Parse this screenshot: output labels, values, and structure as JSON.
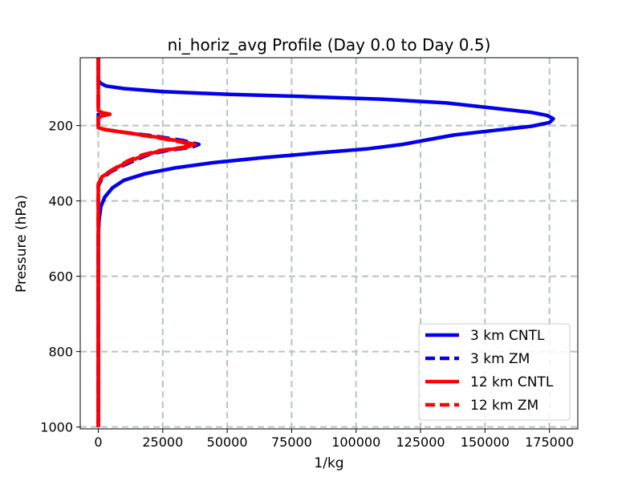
{
  "chart_data": {
    "type": "line",
    "title": "ni_horiz_avg Profile (Day 0.0 to Day 0.5)",
    "xlabel": "1/kg",
    "ylabel": "Pressure (hPa)",
    "xlim": [
      -7000,
      186000
    ],
    "ylim": [
      1005,
      20
    ],
    "y_inverted": true,
    "grid": true,
    "xticks": [
      0,
      25000,
      50000,
      75000,
      100000,
      125000,
      150000,
      175000
    ],
    "xtick_labels": [
      "0",
      "25000",
      "50000",
      "75000",
      "100000",
      "125000",
      "150000",
      "175000"
    ],
    "yticks": [
      200,
      400,
      600,
      800,
      1000
    ],
    "ytick_labels": [
      "200",
      "400",
      "600",
      "800",
      "1000"
    ],
    "legend_position": "lower-right",
    "series": [
      {
        "name": "3 km CNTL",
        "color": "#0000ee",
        "style": "solid",
        "points": [
          [
            0,
            20
          ],
          [
            0,
            80
          ],
          [
            1000,
            88
          ],
          [
            3000,
            95
          ],
          [
            10000,
            102
          ],
          [
            25000,
            110
          ],
          [
            50000,
            117
          ],
          [
            80000,
            123
          ],
          [
            110000,
            130
          ],
          [
            135000,
            140
          ],
          [
            155000,
            155
          ],
          [
            168000,
            165
          ],
          [
            174000,
            173
          ],
          [
            176500,
            182
          ],
          [
            175000,
            192
          ],
          [
            168000,
            202
          ],
          [
            155000,
            212
          ],
          [
            138000,
            225
          ],
          [
            126000,
            240
          ],
          [
            118000,
            250
          ],
          [
            104000,
            262
          ],
          [
            86000,
            272
          ],
          [
            64000,
            285
          ],
          [
            45000,
            298
          ],
          [
            30000,
            312
          ],
          [
            18000,
            328
          ],
          [
            10000,
            345
          ],
          [
            5500,
            365
          ],
          [
            2500,
            390
          ],
          [
            1000,
            415
          ],
          [
            300,
            450
          ],
          [
            0,
            490
          ],
          [
            0,
            1000
          ]
        ]
      },
      {
        "name": "3 km ZM",
        "color": "#0000ee",
        "style": "dashed",
        "points": [
          [
            0,
            20
          ],
          [
            0,
            205
          ],
          [
            2000,
            210
          ],
          [
            10000,
            218
          ],
          [
            22000,
            228
          ],
          [
            33000,
            240
          ],
          [
            39000,
            250
          ],
          [
            36000,
            258
          ],
          [
            27000,
            266
          ],
          [
            20000,
            276
          ],
          [
            15000,
            290
          ],
          [
            10000,
            305
          ],
          [
            5000,
            322
          ],
          [
            1500,
            340
          ],
          [
            0,
            360
          ],
          [
            0,
            1000
          ]
        ]
      },
      {
        "name": "12 km CNTL",
        "color": "#ff0000",
        "style": "solid",
        "points": [
          [
            0,
            20
          ],
          [
            0,
            160
          ],
          [
            1500,
            166
          ],
          [
            4500,
            170
          ],
          [
            1500,
            174
          ],
          [
            0,
            180
          ],
          [
            0,
            206
          ],
          [
            3000,
            211
          ],
          [
            10000,
            218
          ],
          [
            22000,
            230
          ],
          [
            32000,
            242
          ],
          [
            37500,
            250
          ],
          [
            34000,
            258
          ],
          [
            25000,
            266
          ],
          [
            18000,
            278
          ],
          [
            13000,
            292
          ],
          [
            9000,
            305
          ],
          [
            5000,
            320
          ],
          [
            1500,
            336
          ],
          [
            0,
            355
          ],
          [
            0,
            1000
          ]
        ]
      },
      {
        "name": "12 km ZM",
        "color": "#ff0000",
        "style": "dashed",
        "points": [
          [
            0,
            20
          ],
          [
            0,
            160
          ],
          [
            1500,
            166
          ],
          [
            4500,
            170
          ],
          [
            1500,
            174
          ],
          [
            0,
            180
          ],
          [
            0,
            206
          ],
          [
            3000,
            211
          ],
          [
            10000,
            218
          ],
          [
            21000,
            230
          ],
          [
            31000,
            242
          ],
          [
            36000,
            250
          ],
          [
            33000,
            258
          ],
          [
            24000,
            266
          ],
          [
            17000,
            278
          ],
          [
            12000,
            292
          ],
          [
            8500,
            305
          ],
          [
            4800,
            320
          ],
          [
            1400,
            336
          ],
          [
            0,
            355
          ],
          [
            0,
            1000
          ]
        ]
      }
    ]
  }
}
